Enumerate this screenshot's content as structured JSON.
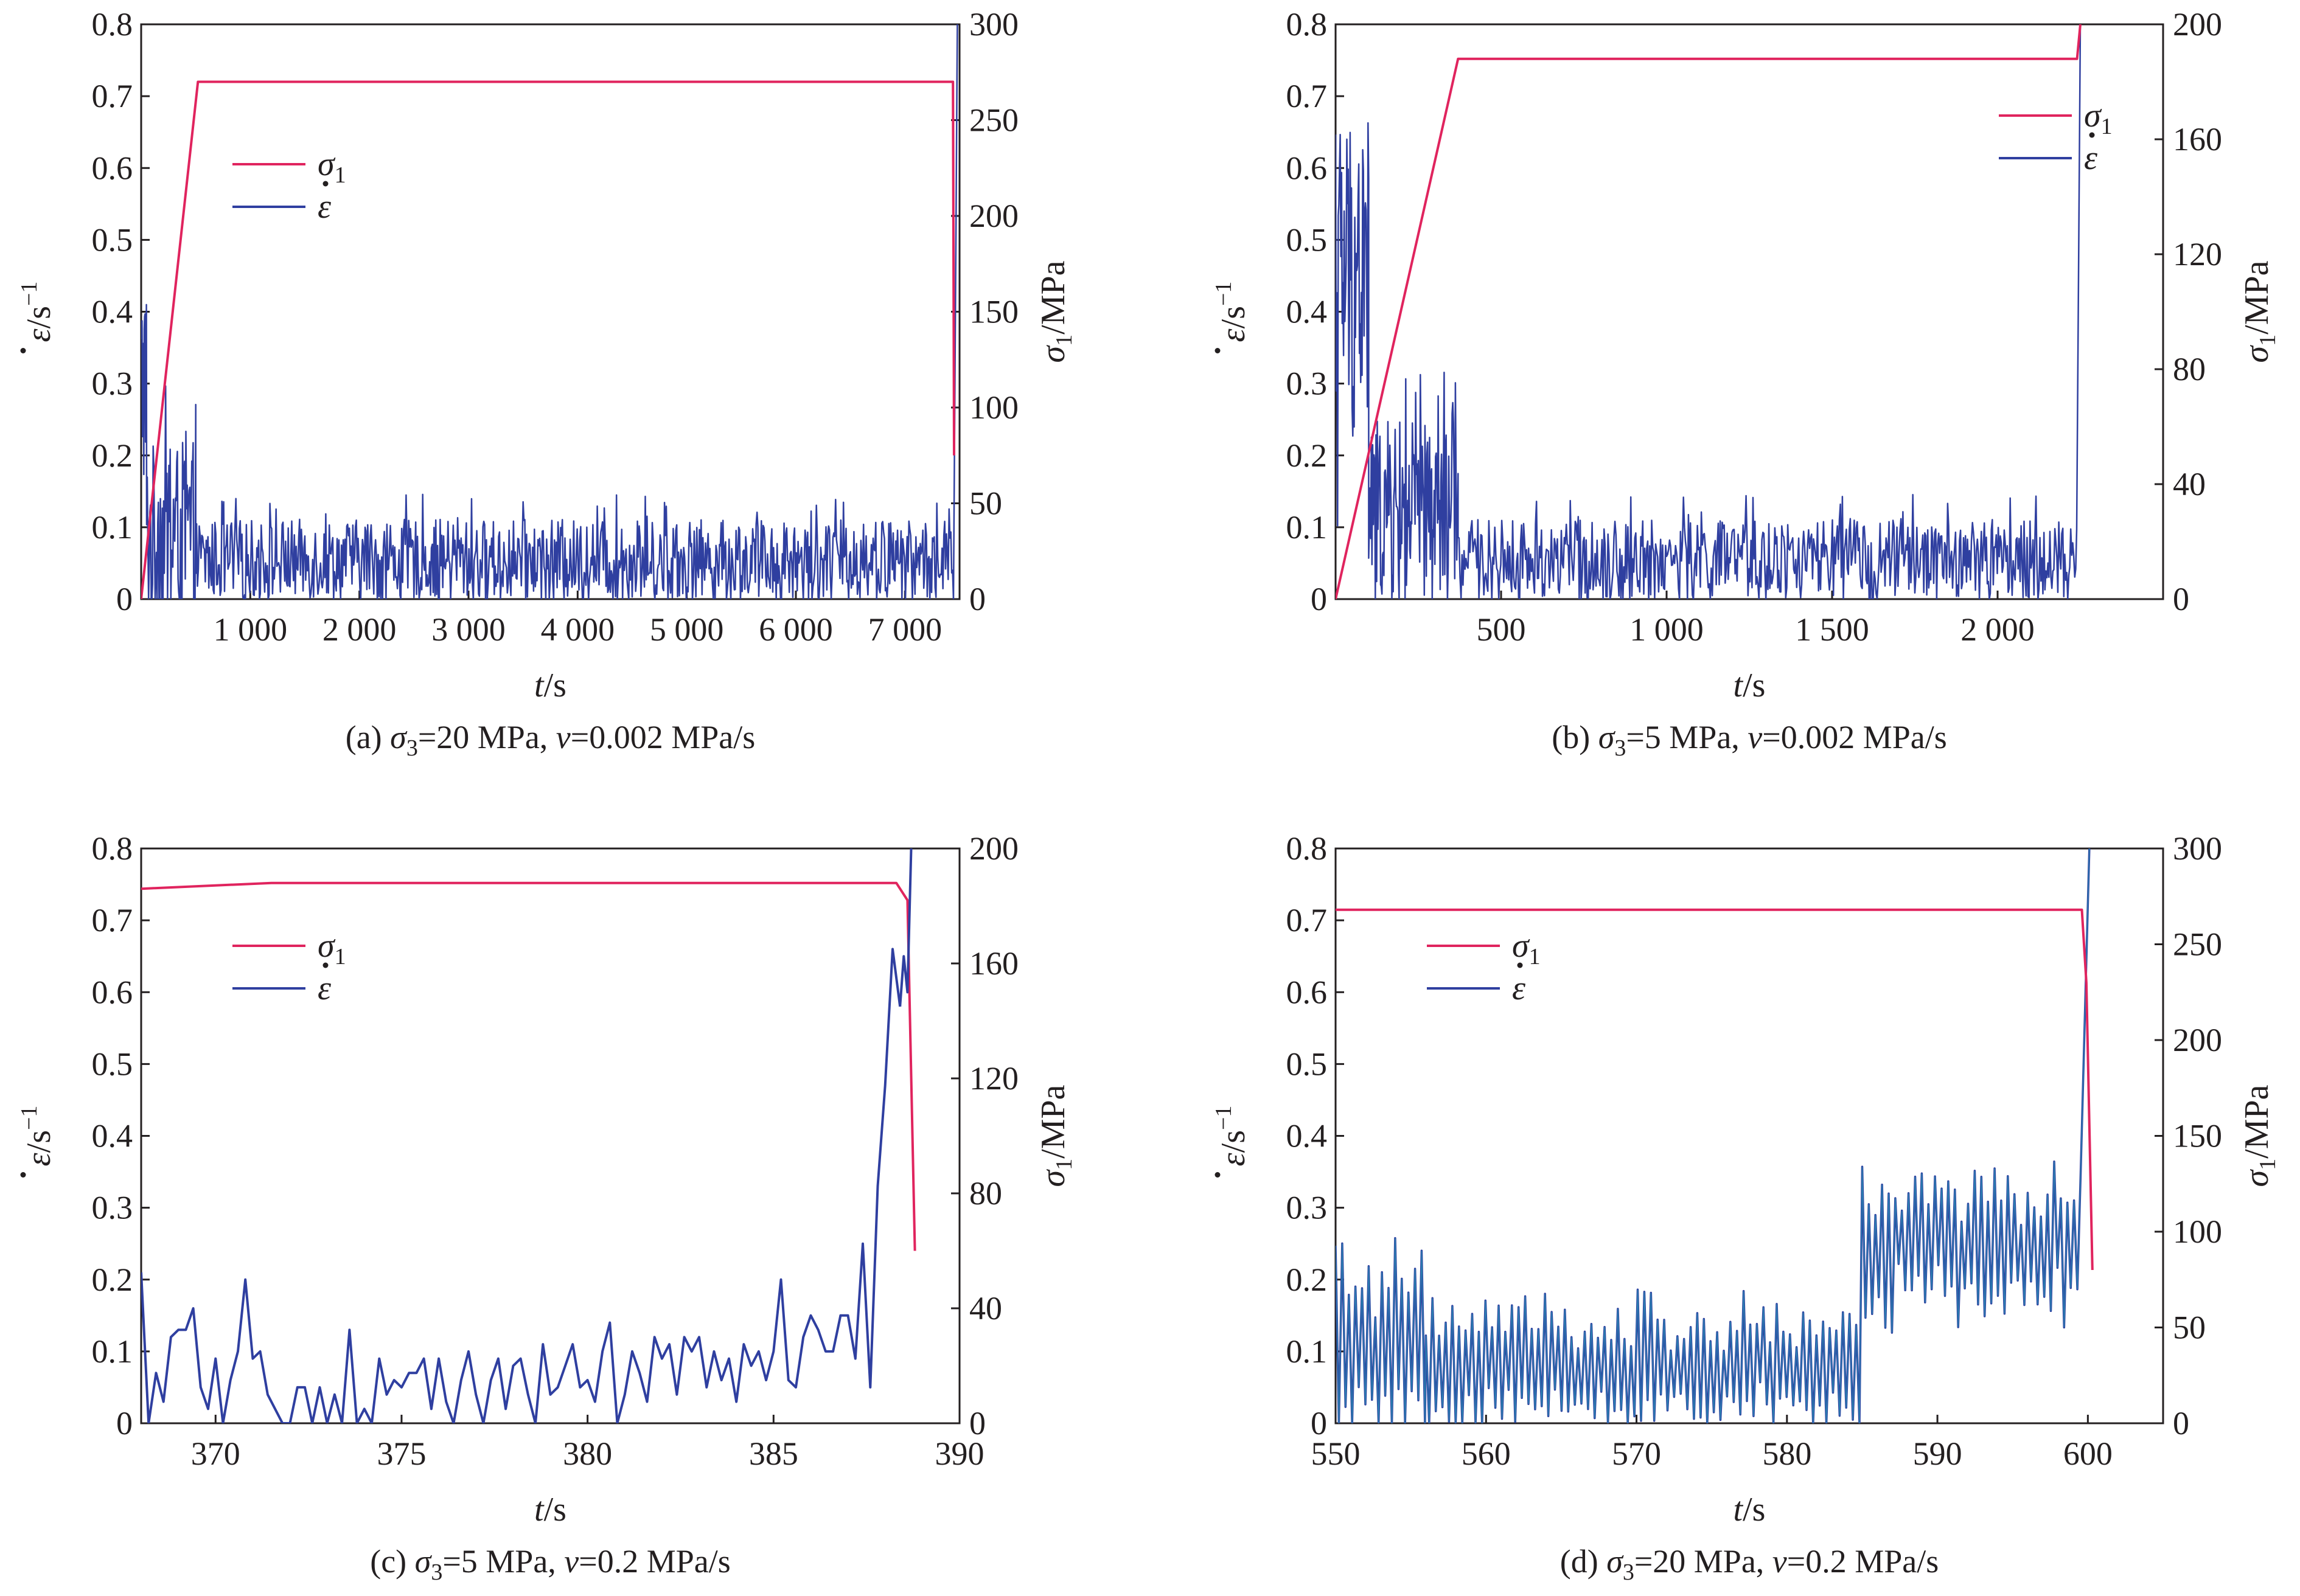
{
  "chart_data": [
    {
      "type": "line",
      "panel": "a",
      "caption": {
        "prefix": "(a) ",
        "sym": "σ",
        "sub": "3",
        "mid": "=20 MPa, ",
        "v": "v",
        "suffix": "=0.002 MPa/s"
      },
      "xlabel": {
        "italic": "t",
        "rest": "/s"
      },
      "ylabel_left": {
        "base": "ε",
        "rest": "/s",
        "sup": "−1"
      },
      "ylabel_right": {
        "sym": "σ",
        "sub": "1",
        "rest": "/MPa"
      },
      "xlim": [
        0,
        7500
      ],
      "xticks": [
        1000,
        2000,
        3000,
        4000,
        5000,
        6000,
        7000
      ],
      "xticklabels": [
        "1 000",
        "2 000",
        "3 000",
        "4 000",
        "5 000",
        "6 000",
        "7 000"
      ],
      "ylim_left": [
        0,
        0.8
      ],
      "yticks_left": [
        0,
        0.1,
        0.2,
        0.3,
        0.4,
        0.5,
        0.6,
        0.7,
        0.8
      ],
      "yticklabels_left": [
        "0",
        "0.1",
        "0.2",
        "0.3",
        "0.4",
        "0.5",
        "0.6",
        "0.7",
        "0.8"
      ],
      "ylim_right": [
        0,
        300
      ],
      "yticks_right": [
        0,
        50,
        100,
        150,
        200,
        250,
        300
      ],
      "yticklabels_right": [
        "0",
        "50",
        "100",
        "150",
        "200",
        "250",
        "300"
      ],
      "legend": {
        "position": "upper-left",
        "entries": [
          {
            "sym": "σ",
            "sub": "1",
            "color": "#e0245e"
          },
          {
            "sym": "ε",
            "dot": true,
            "color": "#2f3fa0"
          }
        ]
      },
      "noise": {
        "style": "dense",
        "segments": [
          {
            "x0": 0,
            "x1": 50,
            "mean": 0.3,
            "amp": 0.18,
            "step": 4
          },
          {
            "x0": 50,
            "x1": 500,
            "mean": 0.09,
            "amp": 0.16,
            "step": 6
          },
          {
            "x0": 500,
            "x1": 7450,
            "mean": 0.055,
            "amp": 0.07,
            "step": 8
          }
        ],
        "end_spike": {
          "x": 7480,
          "y": 0.8
        }
      },
      "series": [
        {
          "name": "σ1",
          "axis": "right",
          "color": "#e0245e",
          "x": [
            0,
            520,
            7440,
            7450
          ],
          "y": [
            0,
            270,
            270,
            75
          ]
        }
      ]
    },
    {
      "type": "line",
      "panel": "b",
      "caption": {
        "prefix": "(b) ",
        "sym": "σ",
        "sub": "3",
        "mid": "=5 MPa, ",
        "v": "v",
        "suffix": "=0.002 MPa/s"
      },
      "xlabel": {
        "italic": "t",
        "rest": "/s"
      },
      "ylabel_left": {
        "base": "ε",
        "rest": "/s",
        "sup": "−1"
      },
      "ylabel_right": {
        "sym": "σ",
        "sub": "1",
        "rest": "/MPa"
      },
      "xlim": [
        0,
        2500
      ],
      "xticks": [
        500,
        1000,
        1500,
        2000
      ],
      "xticklabels": [
        "500",
        "1 000",
        "1 500",
        "2 000"
      ],
      "ylim_left": [
        0,
        0.8
      ],
      "yticks_left": [
        0,
        0.1,
        0.2,
        0.3,
        0.4,
        0.5,
        0.6,
        0.7,
        0.8
      ],
      "yticklabels_left": [
        "0",
        "0.1",
        "0.2",
        "0.3",
        "0.4",
        "0.5",
        "0.6",
        "0.7",
        "0.8"
      ],
      "ylim_right": [
        0,
        200
      ],
      "yticks_right": [
        0,
        40,
        80,
        120,
        160,
        200
      ],
      "yticklabels_right": [
        "0",
        "40",
        "80",
        "120",
        "160",
        "200"
      ],
      "legend": {
        "position": "upper-right",
        "entries": [
          {
            "sym": "σ",
            "sub": "1",
            "color": "#e0245e"
          },
          {
            "sym": "ε",
            "dot": true,
            "color": "#2f3fa0"
          }
        ]
      },
      "noise": {
        "style": "dense",
        "segments": [
          {
            "x0": 0,
            "x1": 100,
            "mean": 0.45,
            "amp": 0.3,
            "step": 2
          },
          {
            "x0": 100,
            "x1": 370,
            "mean": 0.12,
            "amp": 0.16,
            "step": 2
          },
          {
            "x0": 370,
            "x1": 2240,
            "mean": 0.055,
            "amp": 0.07,
            "step": 3
          }
        ],
        "end_spike": {
          "x": 2250,
          "y": 0.8
        }
      },
      "series": [
        {
          "name": "σ1",
          "axis": "right",
          "color": "#e0245e",
          "x": [
            0,
            370,
            2240,
            2250
          ],
          "y": [
            0,
            188,
            188,
            200
          ]
        }
      ]
    },
    {
      "type": "line",
      "panel": "c",
      "caption": {
        "prefix": "(c) ",
        "sym": "σ",
        "sub": "3",
        "mid": "=5 MPa, ",
        "v": "v",
        "suffix": "=0.2 MPa/s"
      },
      "xlabel": {
        "italic": "t",
        "rest": "/s"
      },
      "ylabel_left": {
        "base": "ε",
        "rest": "/s",
        "sup": "−1"
      },
      "ylabel_right": {
        "sym": "σ",
        "sub": "1",
        "rest": "/MPa"
      },
      "xlim": [
        368,
        390
      ],
      "xticks": [
        370,
        375,
        380,
        385,
        390
      ],
      "xticklabels": [
        "370",
        "375",
        "380",
        "385",
        "390"
      ],
      "ylim_left": [
        0,
        0.8
      ],
      "yticks_left": [
        0,
        0.1,
        0.2,
        0.3,
        0.4,
        0.5,
        0.6,
        0.7,
        0.8
      ],
      "yticklabels_left": [
        "0",
        "0.1",
        "0.2",
        "0.3",
        "0.4",
        "0.5",
        "0.6",
        "0.7",
        "0.8"
      ],
      "ylim_right": [
        0,
        200
      ],
      "yticks_right": [
        0,
        40,
        80,
        120,
        160,
        200
      ],
      "yticklabels_right": [
        "0",
        "40",
        "80",
        "120",
        "160",
        "200"
      ],
      "legend": {
        "position": "upper-left",
        "entries": [
          {
            "sym": "σ",
            "sub": "1",
            "color": "#e0245e"
          },
          {
            "sym": "ε",
            "dot": true,
            "color": "#2f3fa0"
          }
        ]
      },
      "series": [
        {
          "name": "σ1",
          "axis": "right",
          "color": "#e0245e",
          "x": [
            368,
            371.5,
            388.3,
            388.6,
            388.8
          ],
          "y": [
            186,
            188,
            188,
            182,
            60
          ]
        },
        {
          "name": "ε̇",
          "axis": "left",
          "color": "#2f3fa0",
          "x": [
            368.0,
            368.2,
            368.4,
            368.6,
            368.8,
            369.0,
            369.2,
            369.4,
            369.6,
            369.8,
            370.0,
            370.2,
            370.4,
            370.6,
            370.8,
            371.0,
            371.2,
            371.4,
            371.6,
            371.8,
            372.0,
            372.2,
            372.4,
            372.6,
            372.8,
            373.0,
            373.2,
            373.4,
            373.6,
            373.8,
            374.0,
            374.2,
            374.4,
            374.6,
            374.8,
            375.0,
            375.2,
            375.4,
            375.6,
            375.8,
            376.0,
            376.2,
            376.4,
            376.6,
            376.8,
            377.0,
            377.2,
            377.4,
            377.6,
            377.8,
            378.0,
            378.2,
            378.4,
            378.6,
            378.8,
            379.0,
            379.2,
            379.4,
            379.6,
            379.8,
            380.0,
            380.2,
            380.4,
            380.6,
            380.8,
            381.0,
            381.2,
            381.4,
            381.6,
            381.8,
            382.0,
            382.2,
            382.4,
            382.6,
            382.8,
            383.0,
            383.2,
            383.4,
            383.6,
            383.8,
            384.0,
            384.2,
            384.4,
            384.6,
            384.8,
            385.0,
            385.2,
            385.4,
            385.6,
            385.8,
            386.0,
            386.2,
            386.4,
            386.6,
            386.8,
            387.0,
            387.2,
            387.4,
            387.6,
            387.8,
            388.0,
            388.2,
            388.4
          ],
          "y": [
            0.21,
            0.0,
            0.07,
            0.03,
            0.12,
            0.13,
            0.13,
            0.16,
            0.05,
            0.02,
            0.09,
            0.0,
            0.06,
            0.1,
            0.2,
            0.09,
            0.1,
            0.04,
            0.02,
            0.0,
            0.0,
            0.05,
            0.05,
            0.0,
            0.05,
            0.0,
            0.04,
            0.0,
            0.13,
            0.0,
            0.02,
            0.0,
            0.09,
            0.04,
            0.06,
            0.05,
            0.07,
            0.07,
            0.09,
            0.02,
            0.09,
            0.03,
            0.0,
            0.06,
            0.1,
            0.04,
            0.0,
            0.06,
            0.09,
            0.02,
            0.08,
            0.09,
            0.04,
            0.0,
            0.11,
            0.04,
            0.05,
            0.08,
            0.11,
            0.05,
            0.06,
            0.03,
            0.1,
            0.14,
            0.0,
            0.04,
            0.1,
            0.07,
            0.03,
            0.12,
            0.09,
            0.11,
            0.04,
            0.12,
            0.1,
            0.12,
            0.05,
            0.1,
            0.06,
            0.09,
            0.03,
            0.11,
            0.08,
            0.1,
            0.06,
            0.1,
            0.2,
            0.06,
            0.05,
            0.12,
            0.15,
            0.13,
            0.1,
            0.1,
            0.15,
            0.15,
            0.09,
            0.25,
            0.05,
            0.33,
            0.47,
            0.66,
            0.58
          ]
        },
        {
          "name": "ε̇ (end)",
          "axis": "left",
          "color": "#2f3fa0",
          "x": [
            388.4,
            388.5,
            388.6,
            388.7
          ],
          "y": [
            0.58,
            0.65,
            0.6,
            0.8
          ]
        }
      ]
    },
    {
      "type": "line",
      "panel": "d",
      "caption": {
        "prefix": "(d) ",
        "sym": "σ",
        "sub": "3",
        "mid": "=20 MPa, ",
        "v": "v",
        "suffix": "=0.2 MPa/s"
      },
      "xlabel": {
        "italic": "t",
        "rest": "/s"
      },
      "ylabel_left": {
        "base": "ε",
        "rest": "/s",
        "sup": "−1"
      },
      "ylabel_right": {
        "sym": "σ",
        "sub": "1",
        "rest": "/MPa"
      },
      "xlim": [
        550,
        605
      ],
      "xticks": [
        550,
        560,
        570,
        580,
        590,
        600
      ],
      "xticklabels": [
        "550",
        "560",
        "570",
        "580",
        "590",
        "600"
      ],
      "ylim_left": [
        0,
        0.8
      ],
      "yticks_left": [
        0,
        0.1,
        0.2,
        0.3,
        0.4,
        0.5,
        0.6,
        0.7,
        0.8
      ],
      "yticklabels_left": [
        "0",
        "0.1",
        "0.2",
        "0.3",
        "0.4",
        "0.5",
        "0.6",
        "0.7",
        "0.8"
      ],
      "ylim_right": [
        0,
        300
      ],
      "yticks_right": [
        0,
        50,
        100,
        150,
        200,
        250,
        300
      ],
      "yticklabels_right": [
        "0",
        "50",
        "100",
        "150",
        "200",
        "250",
        "300"
      ],
      "legend": {
        "position": "upper-left",
        "entries": [
          {
            "sym": "σ",
            "sub": "1",
            "color": "#e0245e"
          },
          {
            "sym": "ε",
            "dot": true,
            "color": "#2f3fa0"
          }
        ]
      },
      "noise": {
        "style": "zigzag",
        "segments": [
          {
            "x0": 550,
            "x1": 556,
            "mean": 0.12,
            "amp": 0.14,
            "step": 0.22
          },
          {
            "x0": 556,
            "x1": 585,
            "mean": 0.08,
            "amp": 0.09,
            "step": 0.22
          },
          {
            "x0": 585,
            "x1": 599.6,
            "mean": 0.25,
            "amp": 0.11,
            "step": 0.22
          }
        ],
        "end_spike": {
          "x": 600.1,
          "y": 0.8
        }
      },
      "series": [
        {
          "name": "σ1",
          "axis": "right",
          "color": "#e0245e",
          "x": [
            550,
            599.6,
            599.9,
            600.3
          ],
          "y": [
            268,
            268,
            230,
            80
          ]
        }
      ]
    }
  ]
}
